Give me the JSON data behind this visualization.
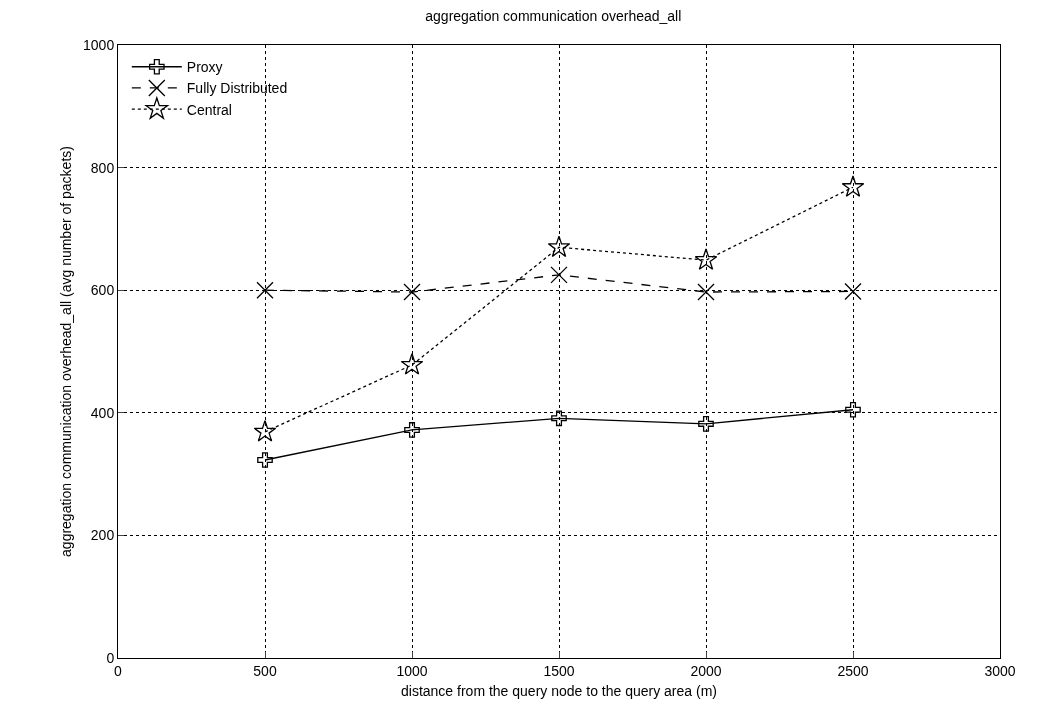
{
  "chart_data": {
    "type": "line",
    "title": "aggregation communication overhead_all",
    "xlabel": "distance from the query node to the query area (m)",
    "ylabel": "aggregation communication overhead_all (avg number of packets)",
    "x": [
      500,
      1000,
      1500,
      2000,
      2500
    ],
    "series": [
      {
        "name": "Proxy",
        "color": "#000000",
        "marker": "cross",
        "line_style": "solid",
        "values": [
          323,
          372,
          391,
          382,
          405
        ]
      },
      {
        "name": "Fully Distributed",
        "color": "#000000",
        "marker": "x",
        "line_style": "dashed",
        "values": [
          600,
          597,
          625,
          597,
          598
        ]
      },
      {
        "name": "Central",
        "color": "#000000",
        "marker": "star",
        "line_style": "dotted",
        "values": [
          369,
          478,
          670,
          649,
          768
        ]
      }
    ],
    "xlim": [
      0,
      3000
    ],
    "xticks": [
      0,
      500,
      1000,
      1500,
      2000,
      2500,
      3000
    ],
    "ylim": [
      0,
      1000
    ],
    "yticks": [
      0,
      200,
      400,
      600,
      800,
      1000
    ],
    "grid": true,
    "legend": "top left"
  }
}
